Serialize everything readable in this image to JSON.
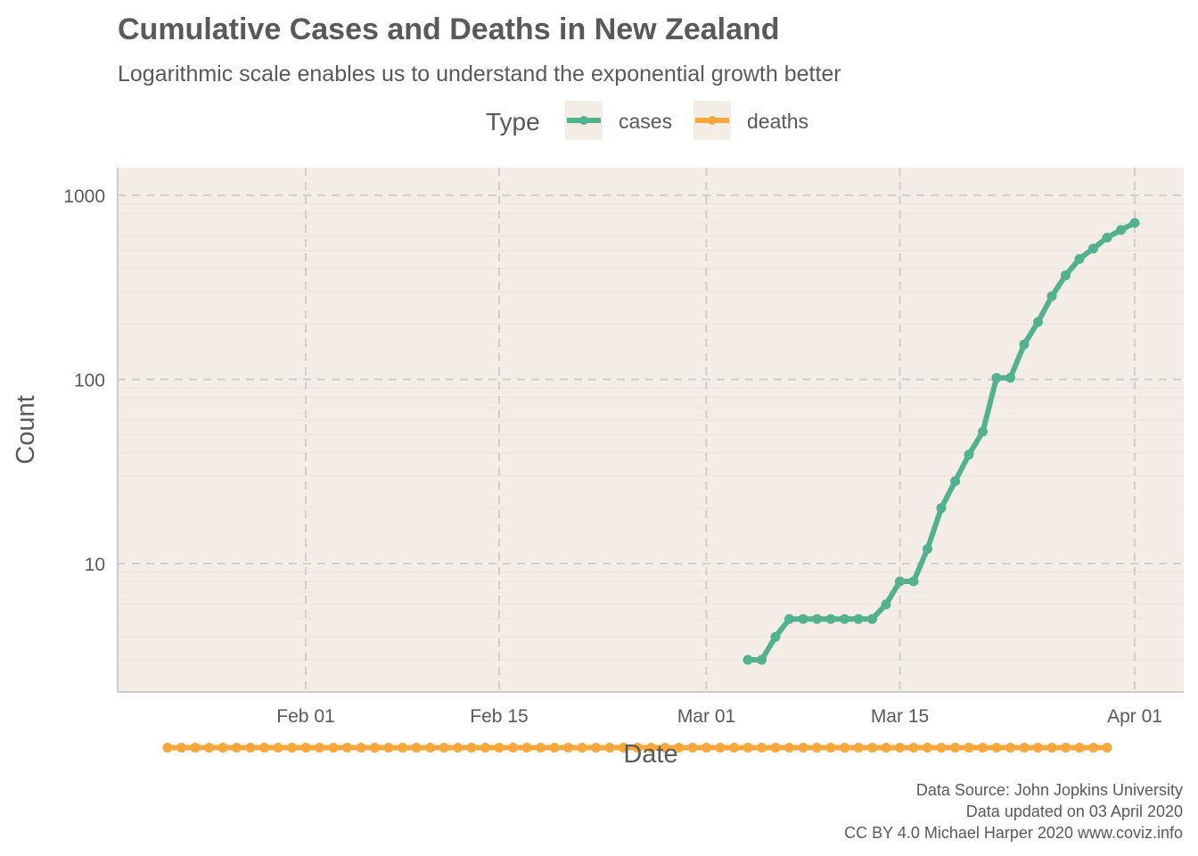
{
  "chart_data": {
    "type": "line",
    "title": "Cumulative Cases and Deaths in New Zealand",
    "subtitle": "Logarithmic scale enables us to understand the exponential growth better",
    "xlabel": "Date",
    "ylabel": "Count",
    "x_scale": "date",
    "y_scale": "log10",
    "xlim": [
      "2020-01-18",
      "2020-04-05"
    ],
    "ylim": [
      1,
      1400
    ],
    "x_ticks": [
      {
        "date": "2020-02-01",
        "label": "Feb 01"
      },
      {
        "date": "2020-02-15",
        "label": "Feb 15"
      },
      {
        "date": "2020-03-01",
        "label": "Mar 01"
      },
      {
        "date": "2020-03-15",
        "label": "Mar 15"
      },
      {
        "date": "2020-04-01",
        "label": "Apr 01"
      }
    ],
    "y_ticks": [
      {
        "value": 10,
        "label": "10"
      },
      {
        "value": 100,
        "label": "100"
      },
      {
        "value": 1000,
        "label": "1000"
      }
    ],
    "grid": true,
    "legend": {
      "title": "Type",
      "position": "top"
    },
    "series": [
      {
        "name": "cases",
        "color": "#52b28f",
        "points": [
          [
            "2020-03-04",
            3
          ],
          [
            "2020-03-05",
            3
          ],
          [
            "2020-03-06",
            4
          ],
          [
            "2020-03-07",
            5
          ],
          [
            "2020-03-08",
            5
          ],
          [
            "2020-03-09",
            5
          ],
          [
            "2020-03-10",
            5
          ],
          [
            "2020-03-11",
            5
          ],
          [
            "2020-03-12",
            5
          ],
          [
            "2020-03-13",
            5
          ],
          [
            "2020-03-14",
            6
          ],
          [
            "2020-03-15",
            8
          ],
          [
            "2020-03-16",
            8
          ],
          [
            "2020-03-17",
            12
          ],
          [
            "2020-03-18",
            20
          ],
          [
            "2020-03-19",
            28
          ],
          [
            "2020-03-20",
            39
          ],
          [
            "2020-03-21",
            52
          ],
          [
            "2020-03-22",
            102
          ],
          [
            "2020-03-23",
            102
          ],
          [
            "2020-03-24",
            155
          ],
          [
            "2020-03-25",
            205
          ],
          [
            "2020-03-26",
            283
          ],
          [
            "2020-03-27",
            368
          ],
          [
            "2020-03-28",
            451
          ],
          [
            "2020-03-29",
            514
          ],
          [
            "2020-03-30",
            589
          ],
          [
            "2020-03-31",
            647
          ],
          [
            "2020-04-01",
            708
          ]
        ]
      },
      {
        "name": "deaths",
        "color": "#f8a73c",
        "points": [
          [
            "2020-01-22",
            1
          ],
          [
            "2020-01-23",
            1
          ],
          [
            "2020-01-24",
            1
          ],
          [
            "2020-01-25",
            1
          ],
          [
            "2020-01-26",
            1
          ],
          [
            "2020-01-27",
            1
          ],
          [
            "2020-01-28",
            1
          ],
          [
            "2020-01-29",
            1
          ],
          [
            "2020-01-30",
            1
          ],
          [
            "2020-01-31",
            1
          ],
          [
            "2020-02-01",
            1
          ],
          [
            "2020-02-02",
            1
          ],
          [
            "2020-02-03",
            1
          ],
          [
            "2020-02-04",
            1
          ],
          [
            "2020-02-05",
            1
          ],
          [
            "2020-02-06",
            1
          ],
          [
            "2020-02-07",
            1
          ],
          [
            "2020-02-08",
            1
          ],
          [
            "2020-02-09",
            1
          ],
          [
            "2020-02-10",
            1
          ],
          [
            "2020-02-11",
            1
          ],
          [
            "2020-02-12",
            1
          ],
          [
            "2020-02-13",
            1
          ],
          [
            "2020-02-14",
            1
          ],
          [
            "2020-02-15",
            1
          ],
          [
            "2020-02-16",
            1
          ],
          [
            "2020-02-17",
            1
          ],
          [
            "2020-02-18",
            1
          ],
          [
            "2020-02-19",
            1
          ],
          [
            "2020-02-20",
            1
          ],
          [
            "2020-02-21",
            1
          ],
          [
            "2020-02-22",
            1
          ],
          [
            "2020-02-23",
            1
          ],
          [
            "2020-02-24",
            1
          ],
          [
            "2020-02-25",
            1
          ],
          [
            "2020-02-26",
            1
          ],
          [
            "2020-02-27",
            1
          ],
          [
            "2020-02-28",
            1
          ],
          [
            "2020-02-29",
            1
          ],
          [
            "2020-03-01",
            1
          ],
          [
            "2020-03-02",
            1
          ],
          [
            "2020-03-03",
            1
          ],
          [
            "2020-03-04",
            1
          ],
          [
            "2020-03-05",
            1
          ],
          [
            "2020-03-06",
            1
          ],
          [
            "2020-03-07",
            1
          ],
          [
            "2020-03-08",
            1
          ],
          [
            "2020-03-09",
            1
          ],
          [
            "2020-03-10",
            1
          ],
          [
            "2020-03-11",
            1
          ],
          [
            "2020-03-12",
            1
          ],
          [
            "2020-03-13",
            1
          ],
          [
            "2020-03-14",
            1
          ],
          [
            "2020-03-15",
            1
          ],
          [
            "2020-03-16",
            1
          ],
          [
            "2020-03-17",
            1
          ],
          [
            "2020-03-18",
            1
          ],
          [
            "2020-03-19",
            1
          ],
          [
            "2020-03-20",
            1
          ],
          [
            "2020-03-21",
            1
          ],
          [
            "2020-03-22",
            1
          ],
          [
            "2020-03-23",
            1
          ],
          [
            "2020-03-24",
            1
          ],
          [
            "2020-03-25",
            1
          ],
          [
            "2020-03-26",
            1
          ],
          [
            "2020-03-27",
            1
          ],
          [
            "2020-03-28",
            1
          ],
          [
            "2020-03-29",
            1
          ],
          [
            "2020-03-30",
            1
          ]
        ]
      }
    ],
    "caption": [
      "Data Source: John Jopkins University",
      "Data updated on 03 April 2020",
      "CC BY 4.0 Michael Harper 2020 www.coviz.info"
    ]
  },
  "colors": {
    "panel_background": "#f3ede6",
    "grid_major": "#cfcfcf",
    "grid_minor": "#e9e3dc",
    "axis_line": "#cccccc",
    "text": "#595959"
  }
}
